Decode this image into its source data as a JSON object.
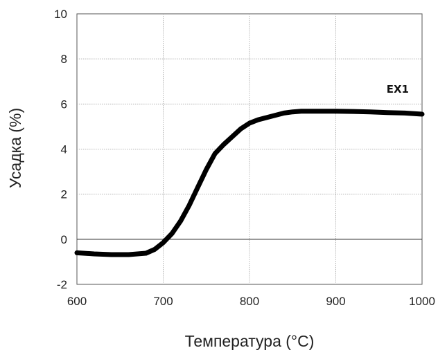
{
  "chart_data": {
    "type": "line",
    "title": "",
    "xlabel": "Температура (°C)",
    "ylabel": "Усадка (%)",
    "xlim": [
      600,
      1000
    ],
    "ylim": [
      -2,
      10
    ],
    "xticks": [
      600,
      700,
      800,
      900,
      1000
    ],
    "yticks": [
      -2,
      0,
      2,
      4,
      6,
      8,
      10
    ],
    "grid": true,
    "zero_line": true,
    "legend": "none",
    "series": [
      {
        "name": "EX1",
        "label_position": "top-right",
        "color": "#000000",
        "x": [
          600,
          620,
          640,
          660,
          680,
          690,
          700,
          710,
          720,
          730,
          740,
          750,
          760,
          770,
          780,
          790,
          800,
          810,
          820,
          830,
          840,
          850,
          860,
          880,
          900,
          920,
          940,
          960,
          980,
          1000
        ],
        "y": [
          -0.6,
          -0.65,
          -0.68,
          -0.68,
          -0.62,
          -0.45,
          -0.15,
          0.25,
          0.8,
          1.5,
          2.3,
          3.1,
          3.8,
          4.2,
          4.55,
          4.9,
          5.15,
          5.3,
          5.4,
          5.5,
          5.6,
          5.65,
          5.68,
          5.68,
          5.68,
          5.67,
          5.65,
          5.62,
          5.6,
          5.55
        ]
      }
    ]
  }
}
